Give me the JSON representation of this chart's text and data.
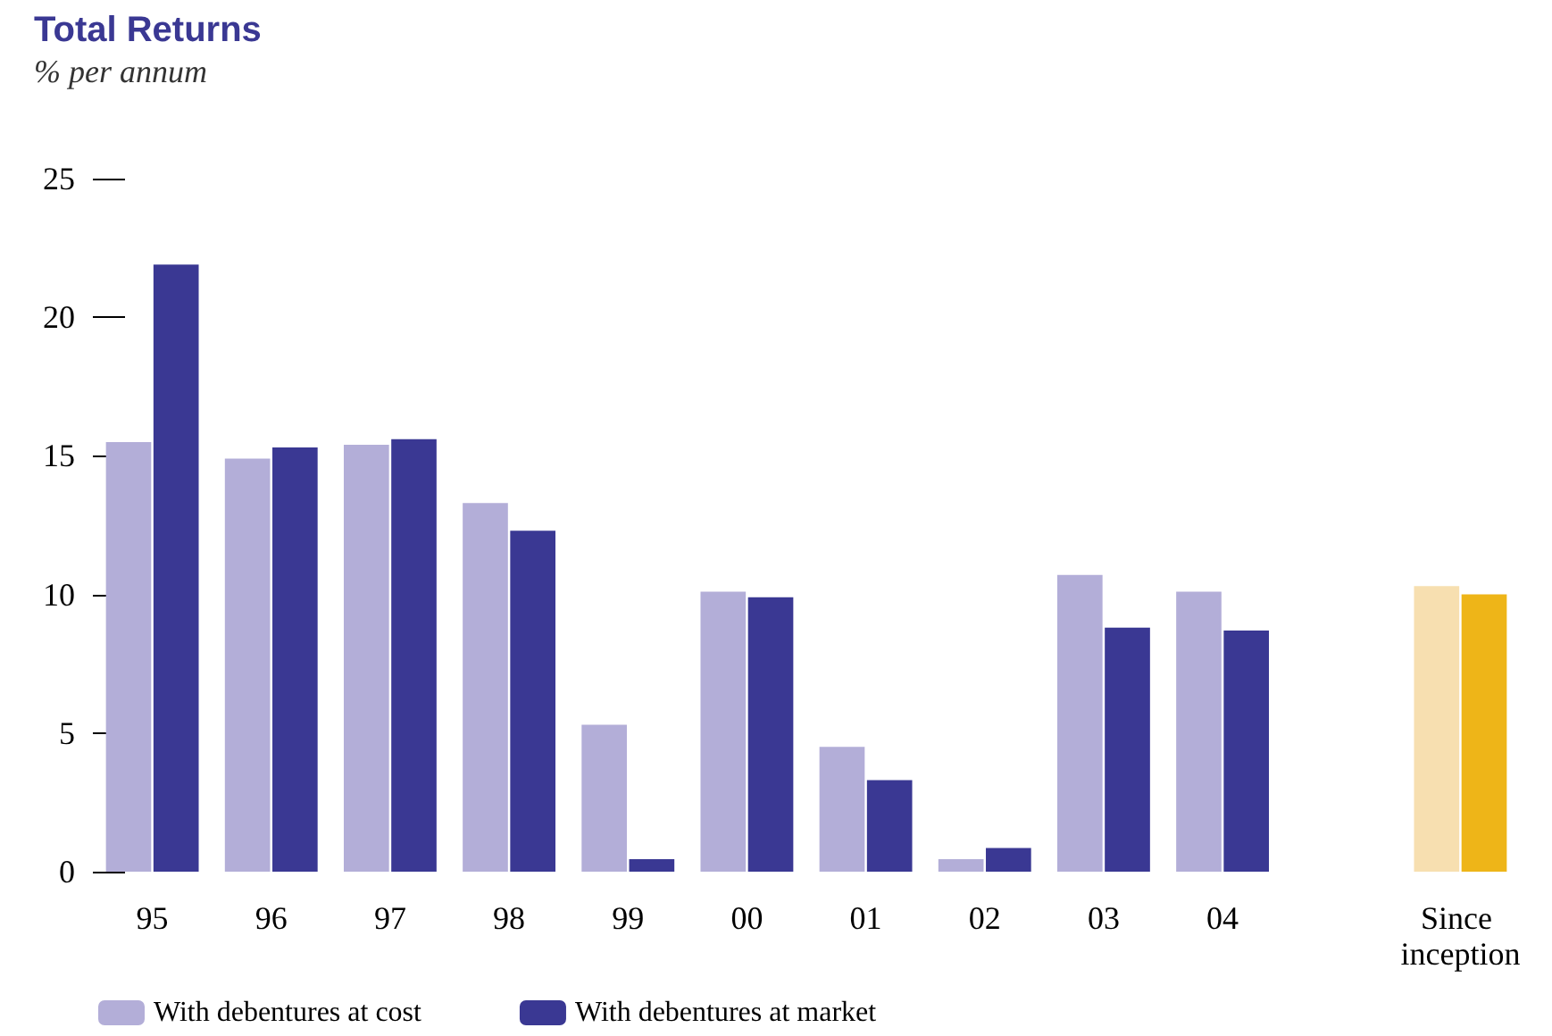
{
  "chart_data": {
    "type": "bar",
    "title": "Total Returns",
    "subtitle": "% per annum",
    "categories": [
      "95",
      "96",
      "97",
      "98",
      "99",
      "00",
      "01",
      "02",
      "03",
      "04",
      null,
      "Since inception"
    ],
    "series": [
      {
        "name": "With debentures at cost",
        "color": "#b3aed8",
        "colors": [
          "#b3aed8",
          "#b3aed8",
          "#b3aed8",
          "#b3aed8",
          "#b3aed8",
          "#b3aed8",
          "#b3aed8",
          "#b3aed8",
          "#b3aed8",
          "#b3aed8",
          "#b3aed8",
          "#f7dfb0"
        ],
        "values": [
          15.5,
          14.9,
          15.4,
          13.3,
          5.3,
          10.1,
          4.5,
          0.45,
          10.7,
          10.1,
          null,
          10.3
        ]
      },
      {
        "name": "With debentures at market",
        "color": "#3a3893",
        "colors": [
          "#3a3893",
          "#3a3893",
          "#3a3893",
          "#3a3893",
          "#3a3893",
          "#3a3893",
          "#3a3893",
          "#3a3893",
          "#3a3893",
          "#3a3893",
          "#3a3893",
          "#eeb518"
        ],
        "values": [
          21.9,
          15.3,
          15.6,
          12.3,
          0.45,
          9.9,
          3.3,
          0.85,
          8.8,
          8.7,
          null,
          10.0
        ]
      }
    ],
    "ylim": [
      0,
      25
    ],
    "yticks": [
      0,
      5,
      10,
      15,
      20,
      25
    ],
    "grid": false,
    "legend": "bottom left"
  }
}
